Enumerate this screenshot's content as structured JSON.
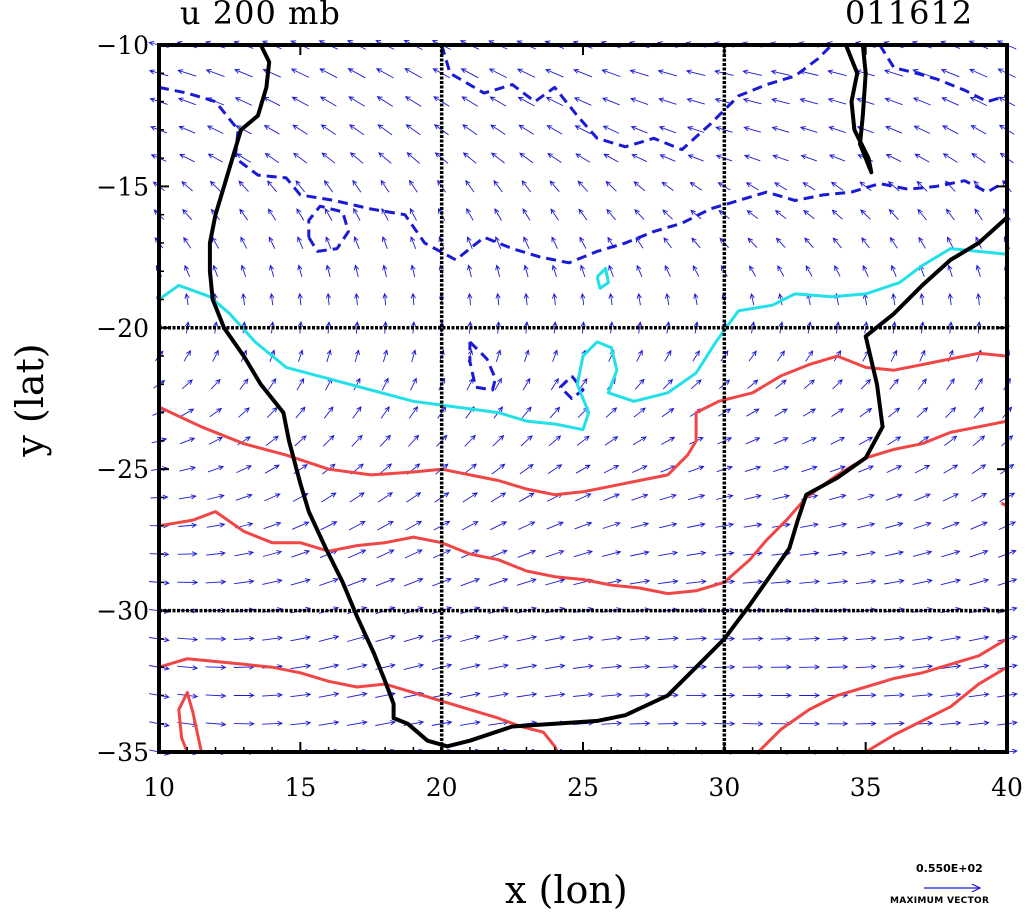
{
  "chart_data": {
    "type": "contour-vector-map",
    "title_left": "u 200 mb",
    "title_right": "011612",
    "xlabel": "x (lon)",
    "ylabel": "y (lat)",
    "xlim": [
      10,
      40
    ],
    "ylim": [
      -35,
      -10
    ],
    "x_ticks": [
      10,
      15,
      20,
      25,
      30,
      35,
      40
    ],
    "y_ticks": [
      -10,
      -15,
      -20,
      -25,
      -30,
      -35
    ],
    "x_tick_labels": [
      "10",
      "15",
      "20",
      "25",
      "30",
      "35",
      "40"
    ],
    "y_tick_labels": [
      "−10",
      "−15",
      "−20",
      "−25",
      "−30",
      "−35"
    ],
    "grid_lines": {
      "x": [
        20,
        30
      ],
      "y": [
        -20,
        -30
      ]
    },
    "reference_vector": {
      "value_label": "0.550E+02",
      "caption": "MAXIMUM VECTOR"
    },
    "colors": {
      "vectors": "#1a1ad6",
      "negative_contour": "#1a1ad6",
      "zero_contour": "#22e0e8",
      "positive_contour": "#f04646",
      "coastline": "#000000",
      "grid": "#000000"
    },
    "coastline_west": [
      [
        13.6,
        -10
      ],
      [
        13.9,
        -10.6
      ],
      [
        13.8,
        -11.5
      ],
      [
        13.5,
        -12.5
      ],
      [
        12.9,
        -13
      ],
      [
        12.6,
        -14
      ],
      [
        12.3,
        -15
      ],
      [
        12,
        -16
      ],
      [
        11.8,
        -17
      ],
      [
        11.8,
        -18
      ],
      [
        11.9,
        -19
      ],
      [
        12.3,
        -20
      ],
      [
        13,
        -21
      ],
      [
        13.6,
        -22
      ],
      [
        14.4,
        -23
      ],
      [
        14.6,
        -24
      ],
      [
        15,
        -25.5
      ],
      [
        15.3,
        -26.5
      ],
      [
        15.9,
        -27.8
      ],
      [
        16.5,
        -29
      ],
      [
        17,
        -30.2
      ],
      [
        17.6,
        -31.5
      ],
      [
        18,
        -32.5
      ],
      [
        18.3,
        -33.3
      ],
      [
        18.3,
        -33.8
      ],
      [
        18.8,
        -34
      ],
      [
        19.5,
        -34.6
      ],
      [
        20.2,
        -34.8
      ],
      [
        21,
        -34.6
      ],
      [
        22.5,
        -34.1
      ],
      [
        24,
        -34
      ],
      [
        25.5,
        -33.9
      ],
      [
        26.5,
        -33.7
      ],
      [
        28,
        -33
      ],
      [
        29,
        -32
      ],
      [
        30,
        -31
      ],
      [
        30.9,
        -29.8
      ],
      [
        31.6,
        -28.8
      ],
      [
        32.3,
        -27.8
      ],
      [
        32.6,
        -26.8
      ],
      [
        32.9,
        -25.9
      ],
      [
        34,
        -25.3
      ],
      [
        35,
        -24.6
      ],
      [
        35.6,
        -23.5
      ],
      [
        35.4,
        -22
      ],
      [
        35,
        -20.3
      ],
      [
        36,
        -19.5
      ],
      [
        37,
        -18.5
      ],
      [
        38,
        -17.6
      ],
      [
        39,
        -17
      ],
      [
        40,
        -16.1
      ]
    ],
    "coastline_lake": [
      [
        34.3,
        -10
      ],
      [
        34.7,
        -11
      ],
      [
        34.5,
        -12
      ],
      [
        34.6,
        -13
      ],
      [
        35.1,
        -14
      ],
      [
        35.2,
        -14.5
      ],
      [
        34.8,
        -13.5
      ],
      [
        34.9,
        -12.5
      ],
      [
        35.0,
        -11
      ],
      [
        34.9,
        -10
      ]
    ],
    "contours": [
      {
        "level": "negative",
        "style": "dashed",
        "points": [
          [
            10,
            -11.5
          ],
          [
            11,
            -11.7
          ],
          [
            12,
            -12
          ],
          [
            12.8,
            -13
          ],
          [
            12.7,
            -14
          ],
          [
            13.5,
            -14.6
          ],
          [
            14.5,
            -14.7
          ],
          [
            15,
            -15.3
          ],
          [
            16.2,
            -15.5
          ],
          [
            17.5,
            -15.8
          ],
          [
            18.7,
            -16
          ],
          [
            19.4,
            -17
          ],
          [
            20.5,
            -17.6
          ],
          [
            21.5,
            -16.8
          ],
          [
            22.5,
            -17.2
          ],
          [
            23.5,
            -17.5
          ],
          [
            24.5,
            -17.7
          ],
          [
            25.5,
            -17.3
          ],
          [
            26.5,
            -17
          ],
          [
            27.5,
            -16.6
          ],
          [
            28.5,
            -16.3
          ],
          [
            29.5,
            -15.8
          ],
          [
            30.5,
            -15.5
          ],
          [
            31.5,
            -15.2
          ],
          [
            32.5,
            -15.5
          ],
          [
            33.5,
            -15.3
          ],
          [
            34.5,
            -15.2
          ],
          [
            35.5,
            -14.9
          ],
          [
            36.5,
            -15.1
          ],
          [
            37.5,
            -15
          ],
          [
            38.5,
            -14.8
          ],
          [
            39.3,
            -15.2
          ],
          [
            40,
            -14.8
          ]
        ]
      },
      {
        "level": "negative",
        "style": "dashed",
        "points": [
          [
            20,
            -10
          ],
          [
            20.3,
            -11
          ],
          [
            21.5,
            -11.7
          ],
          [
            22.5,
            -11.4
          ],
          [
            23.3,
            -12
          ],
          [
            24,
            -11.5
          ],
          [
            24.8,
            -12.5
          ],
          [
            25.5,
            -13.3
          ],
          [
            26.5,
            -13.6
          ],
          [
            27.5,
            -13.3
          ],
          [
            28.5,
            -13.7
          ],
          [
            29.5,
            -12.8
          ],
          [
            30.5,
            -11.8
          ],
          [
            31.5,
            -11.4
          ],
          [
            32.5,
            -11.1
          ],
          [
            33.3,
            -10.5
          ],
          [
            33.8,
            -10
          ]
        ]
      },
      {
        "level": "negative",
        "style": "dashed",
        "points": [
          [
            35.5,
            -10
          ],
          [
            36,
            -10.8
          ],
          [
            36.8,
            -11
          ],
          [
            37.5,
            -11.2
          ],
          [
            38.5,
            -11.6
          ],
          [
            39.3,
            -12
          ],
          [
            40,
            -11.8
          ]
        ]
      },
      {
        "level": "negative",
        "style": "dashed",
        "points": [
          [
            15.3,
            -16.8
          ],
          [
            15.6,
            -17.3
          ],
          [
            16.3,
            -17.2
          ],
          [
            16.7,
            -16.6
          ],
          [
            16.5,
            -15.9
          ],
          [
            15.7,
            -15.7
          ],
          [
            15.3,
            -16.2
          ],
          [
            15.3,
            -16.8
          ]
        ]
      },
      {
        "level": "negative",
        "style": "dashed",
        "points": [
          [
            21,
            -20.5
          ],
          [
            21.6,
            -21.1
          ],
          [
            21.9,
            -21.8
          ],
          [
            21.8,
            -22.2
          ],
          [
            21.2,
            -22.1
          ],
          [
            21.0,
            -21.2
          ],
          [
            21,
            -20.5
          ]
        ]
      },
      {
        "level": "negative",
        "style": "dashed",
        "points": [
          [
            24.6,
            -21.7
          ],
          [
            25.0,
            -22.2
          ],
          [
            24.6,
            -22.5
          ],
          [
            24.2,
            -22.1
          ],
          [
            24.6,
            -21.7
          ]
        ]
      },
      {
        "level": "zero",
        "style": "solid",
        "points": [
          [
            10,
            -19
          ],
          [
            10.7,
            -18.5
          ],
          [
            11.8,
            -18.9
          ],
          [
            12.5,
            -19.5
          ],
          [
            13.4,
            -20.5
          ],
          [
            14.5,
            -21.4
          ],
          [
            16,
            -21.8
          ],
          [
            17.5,
            -22.2
          ],
          [
            19,
            -22.6
          ],
          [
            20.5,
            -22.8
          ],
          [
            22,
            -23
          ],
          [
            23,
            -23.3
          ],
          [
            24,
            -23.4
          ],
          [
            25,
            -23.6
          ],
          [
            25.2,
            -23
          ],
          [
            24.8,
            -22
          ],
          [
            25,
            -21
          ],
          [
            25.5,
            -20.5
          ],
          [
            26,
            -20.7
          ],
          [
            26.2,
            -21.5
          ],
          [
            25.9,
            -22.3
          ],
          [
            26.8,
            -22.6
          ],
          [
            28,
            -22.3
          ],
          [
            29,
            -21.6
          ],
          [
            29.7,
            -20.5
          ],
          [
            30.5,
            -19.4
          ],
          [
            31.7,
            -19.2
          ],
          [
            32.5,
            -18.8
          ],
          [
            33.8,
            -18.9
          ],
          [
            35,
            -18.8
          ],
          [
            36.2,
            -18.4
          ],
          [
            37,
            -17.8
          ],
          [
            38,
            -17.2
          ],
          [
            39,
            -17.3
          ],
          [
            40,
            -17.4
          ]
        ]
      },
      {
        "level": "zero",
        "style": "solid",
        "points": [
          [
            25.5,
            -18.2
          ],
          [
            25.8,
            -17.9
          ],
          [
            25.9,
            -18.4
          ],
          [
            25.6,
            -18.6
          ],
          [
            25.5,
            -18.2
          ]
        ]
      },
      {
        "level": "positive",
        "style": "solid",
        "points": [
          [
            10,
            -22.8
          ],
          [
            11.5,
            -23.5
          ],
          [
            13,
            -24.1
          ],
          [
            14.5,
            -24.5
          ],
          [
            16,
            -25
          ],
          [
            17.5,
            -25.2
          ],
          [
            19,
            -25.1
          ],
          [
            20,
            -25
          ],
          [
            21,
            -25.2
          ],
          [
            22,
            -25.4
          ],
          [
            23,
            -25.7
          ],
          [
            24,
            -25.9
          ],
          [
            25,
            -25.8
          ],
          [
            26,
            -25.6
          ],
          [
            27,
            -25.4
          ],
          [
            28,
            -25.2
          ],
          [
            28.7,
            -24.5
          ],
          [
            29,
            -24
          ],
          [
            29,
            -23
          ],
          [
            29.8,
            -22.6
          ],
          [
            31,
            -22.3
          ],
          [
            32,
            -21.7
          ],
          [
            33,
            -21.3
          ],
          [
            34,
            -21
          ],
          [
            35,
            -21.4
          ],
          [
            36,
            -21.5
          ],
          [
            37,
            -21.3
          ],
          [
            38,
            -21.1
          ],
          [
            39,
            -20.9
          ],
          [
            40,
            -21
          ]
        ]
      },
      {
        "level": "positive",
        "style": "solid",
        "points": [
          [
            10,
            -27
          ],
          [
            11.2,
            -26.8
          ],
          [
            12,
            -26.5
          ],
          [
            13,
            -27.2
          ],
          [
            14,
            -27.6
          ],
          [
            15,
            -27.6
          ],
          [
            16,
            -27.9
          ],
          [
            17,
            -27.7
          ],
          [
            18,
            -27.6
          ],
          [
            19,
            -27.4
          ],
          [
            20,
            -27.6
          ],
          [
            21,
            -28
          ],
          [
            22,
            -28.2
          ],
          [
            23,
            -28.6
          ],
          [
            24,
            -28.8
          ],
          [
            25,
            -28.9
          ],
          [
            26,
            -29.1
          ],
          [
            27,
            -29.2
          ],
          [
            28,
            -29.4
          ],
          [
            29,
            -29.3
          ],
          [
            30,
            -29
          ],
          [
            30.9,
            -28.2
          ],
          [
            31.5,
            -27.5
          ],
          [
            32.2,
            -26.8
          ],
          [
            32.9,
            -26
          ],
          [
            34,
            -25.2
          ],
          [
            35,
            -24.6
          ],
          [
            36,
            -24.3
          ],
          [
            37,
            -24.1
          ],
          [
            38,
            -23.7
          ],
          [
            39,
            -23.5
          ],
          [
            40,
            -23.3
          ]
        ]
      },
      {
        "level": "positive",
        "style": "solid",
        "points": [
          [
            10,
            -32
          ],
          [
            11,
            -31.7
          ],
          [
            12,
            -31.8
          ],
          [
            13,
            -31.9
          ],
          [
            14,
            -32
          ],
          [
            15,
            -32.2
          ],
          [
            16,
            -32.5
          ],
          [
            17,
            -32.7
          ],
          [
            18,
            -32.6
          ],
          [
            19,
            -32.9
          ],
          [
            20,
            -33.2
          ],
          [
            21,
            -33.5
          ],
          [
            22,
            -33.8
          ],
          [
            22.8,
            -34.1
          ],
          [
            23.6,
            -34.3
          ],
          [
            24,
            -34.8
          ],
          [
            24.1,
            -35
          ]
        ]
      },
      {
        "level": "positive",
        "style": "solid",
        "points": [
          [
            11,
            -35
          ],
          [
            10.8,
            -34.5
          ],
          [
            10.7,
            -33.5
          ],
          [
            11,
            -32.9
          ],
          [
            11.2,
            -33.6
          ],
          [
            11.5,
            -35
          ]
        ]
      },
      {
        "level": "positive",
        "style": "solid",
        "points": [
          [
            31.2,
            -35
          ],
          [
            32,
            -34.2
          ],
          [
            33,
            -33.5
          ],
          [
            34,
            -33
          ],
          [
            35,
            -32.7
          ],
          [
            36,
            -32.4
          ],
          [
            37,
            -32.2
          ],
          [
            38,
            -31.9
          ],
          [
            39,
            -31.6
          ],
          [
            40,
            -31
          ]
        ]
      },
      {
        "level": "positive",
        "style": "solid",
        "points": [
          [
            35,
            -35
          ],
          [
            36,
            -34.4
          ],
          [
            37,
            -33.9
          ],
          [
            38,
            -33.4
          ],
          [
            39,
            -32.6
          ],
          [
            40,
            -32
          ]
        ]
      },
      {
        "level": "positive",
        "style": "solid",
        "points": [
          [
            39.8,
            -26.2
          ],
          [
            40,
            -26.3
          ]
        ]
      }
    ]
  }
}
